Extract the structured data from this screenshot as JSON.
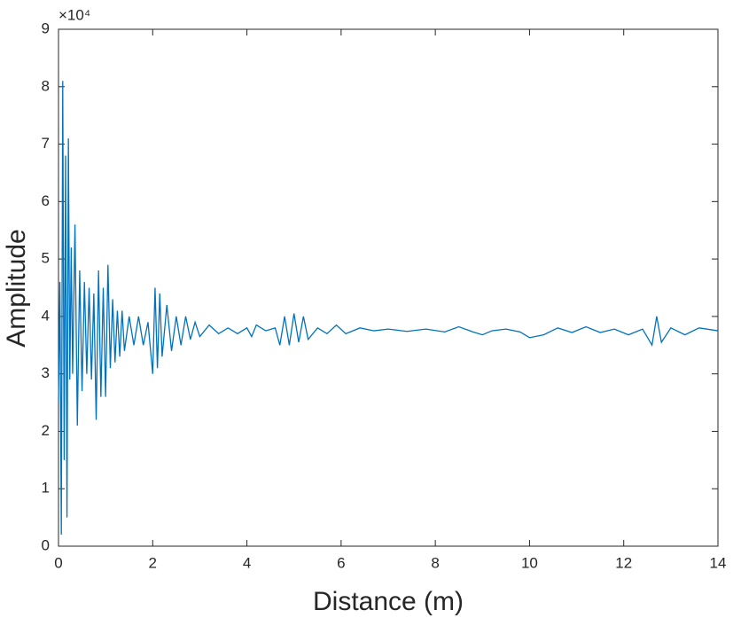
{
  "chart_data": {
    "type": "line",
    "x_label": "Distance (m)",
    "y_label": "Amplitude",
    "y_multiplier": "×10⁴",
    "xlim": [
      0,
      14
    ],
    "xticks": [
      0,
      2,
      4,
      6,
      8,
      10,
      12,
      14
    ],
    "ylim": [
      0,
      9
    ],
    "yticks": [
      0,
      1,
      2,
      3,
      4,
      5,
      6,
      7,
      8,
      9
    ],
    "grid": false,
    "series": [
      {
        "color": "#0072bd",
        "x": [
          0,
          0.03,
          0.06,
          0.09,
          0.12,
          0.15,
          0.18,
          0.21,
          0.24,
          0.27,
          0.3,
          0.35,
          0.4,
          0.45,
          0.5,
          0.55,
          0.6,
          0.65,
          0.7,
          0.75,
          0.8,
          0.85,
          0.9,
          0.95,
          1.0,
          1.05,
          1.1,
          1.15,
          1.2,
          1.25,
          1.3,
          1.35,
          1.4,
          1.5,
          1.6,
          1.7,
          1.8,
          1.9,
          2.0,
          2.05,
          2.1,
          2.15,
          2.2,
          2.3,
          2.4,
          2.5,
          2.6,
          2.7,
          2.8,
          2.9,
          3.0,
          3.2,
          3.4,
          3.6,
          3.8,
          4.0,
          4.1,
          4.2,
          4.4,
          4.6,
          4.7,
          4.8,
          4.9,
          5.0,
          5.1,
          5.2,
          5.3,
          5.5,
          5.7,
          5.9,
          6.1,
          6.4,
          6.7,
          7.0,
          7.4,
          7.8,
          8.2,
          8.5,
          8.8,
          9.0,
          9.2,
          9.5,
          9.8,
          10.0,
          10.3,
          10.6,
          10.9,
          11.2,
          11.5,
          11.8,
          12.1,
          12.4,
          12.6,
          12.7,
          12.8,
          13.0,
          13.3,
          13.6,
          14.0
        ],
        "values": [
          2.5,
          4.6,
          0.2,
          8.1,
          1.5,
          6.8,
          0.5,
          7.1,
          2.9,
          5.2,
          3.0,
          5.6,
          2.1,
          4.8,
          2.7,
          4.6,
          3.0,
          4.5,
          2.9,
          4.4,
          2.2,
          4.8,
          2.6,
          4.5,
          2.6,
          4.9,
          3.1,
          4.3,
          3.2,
          4.1,
          3.3,
          4.1,
          3.4,
          4.0,
          3.5,
          4.0,
          3.5,
          3.9,
          3.0,
          4.5,
          3.1,
          4.4,
          3.3,
          4.2,
          3.4,
          4.0,
          3.5,
          4.0,
          3.6,
          3.9,
          3.65,
          3.85,
          3.7,
          3.8,
          3.7,
          3.8,
          3.65,
          3.85,
          3.75,
          3.8,
          3.5,
          4.0,
          3.5,
          4.05,
          3.55,
          4.0,
          3.6,
          3.8,
          3.7,
          3.85,
          3.7,
          3.8,
          3.75,
          3.78,
          3.74,
          3.78,
          3.73,
          3.82,
          3.73,
          3.68,
          3.75,
          3.78,
          3.73,
          3.63,
          3.68,
          3.8,
          3.72,
          3.82,
          3.72,
          3.78,
          3.68,
          3.78,
          3.5,
          4.0,
          3.55,
          3.8,
          3.68,
          3.8,
          3.75
        ]
      }
    ]
  }
}
